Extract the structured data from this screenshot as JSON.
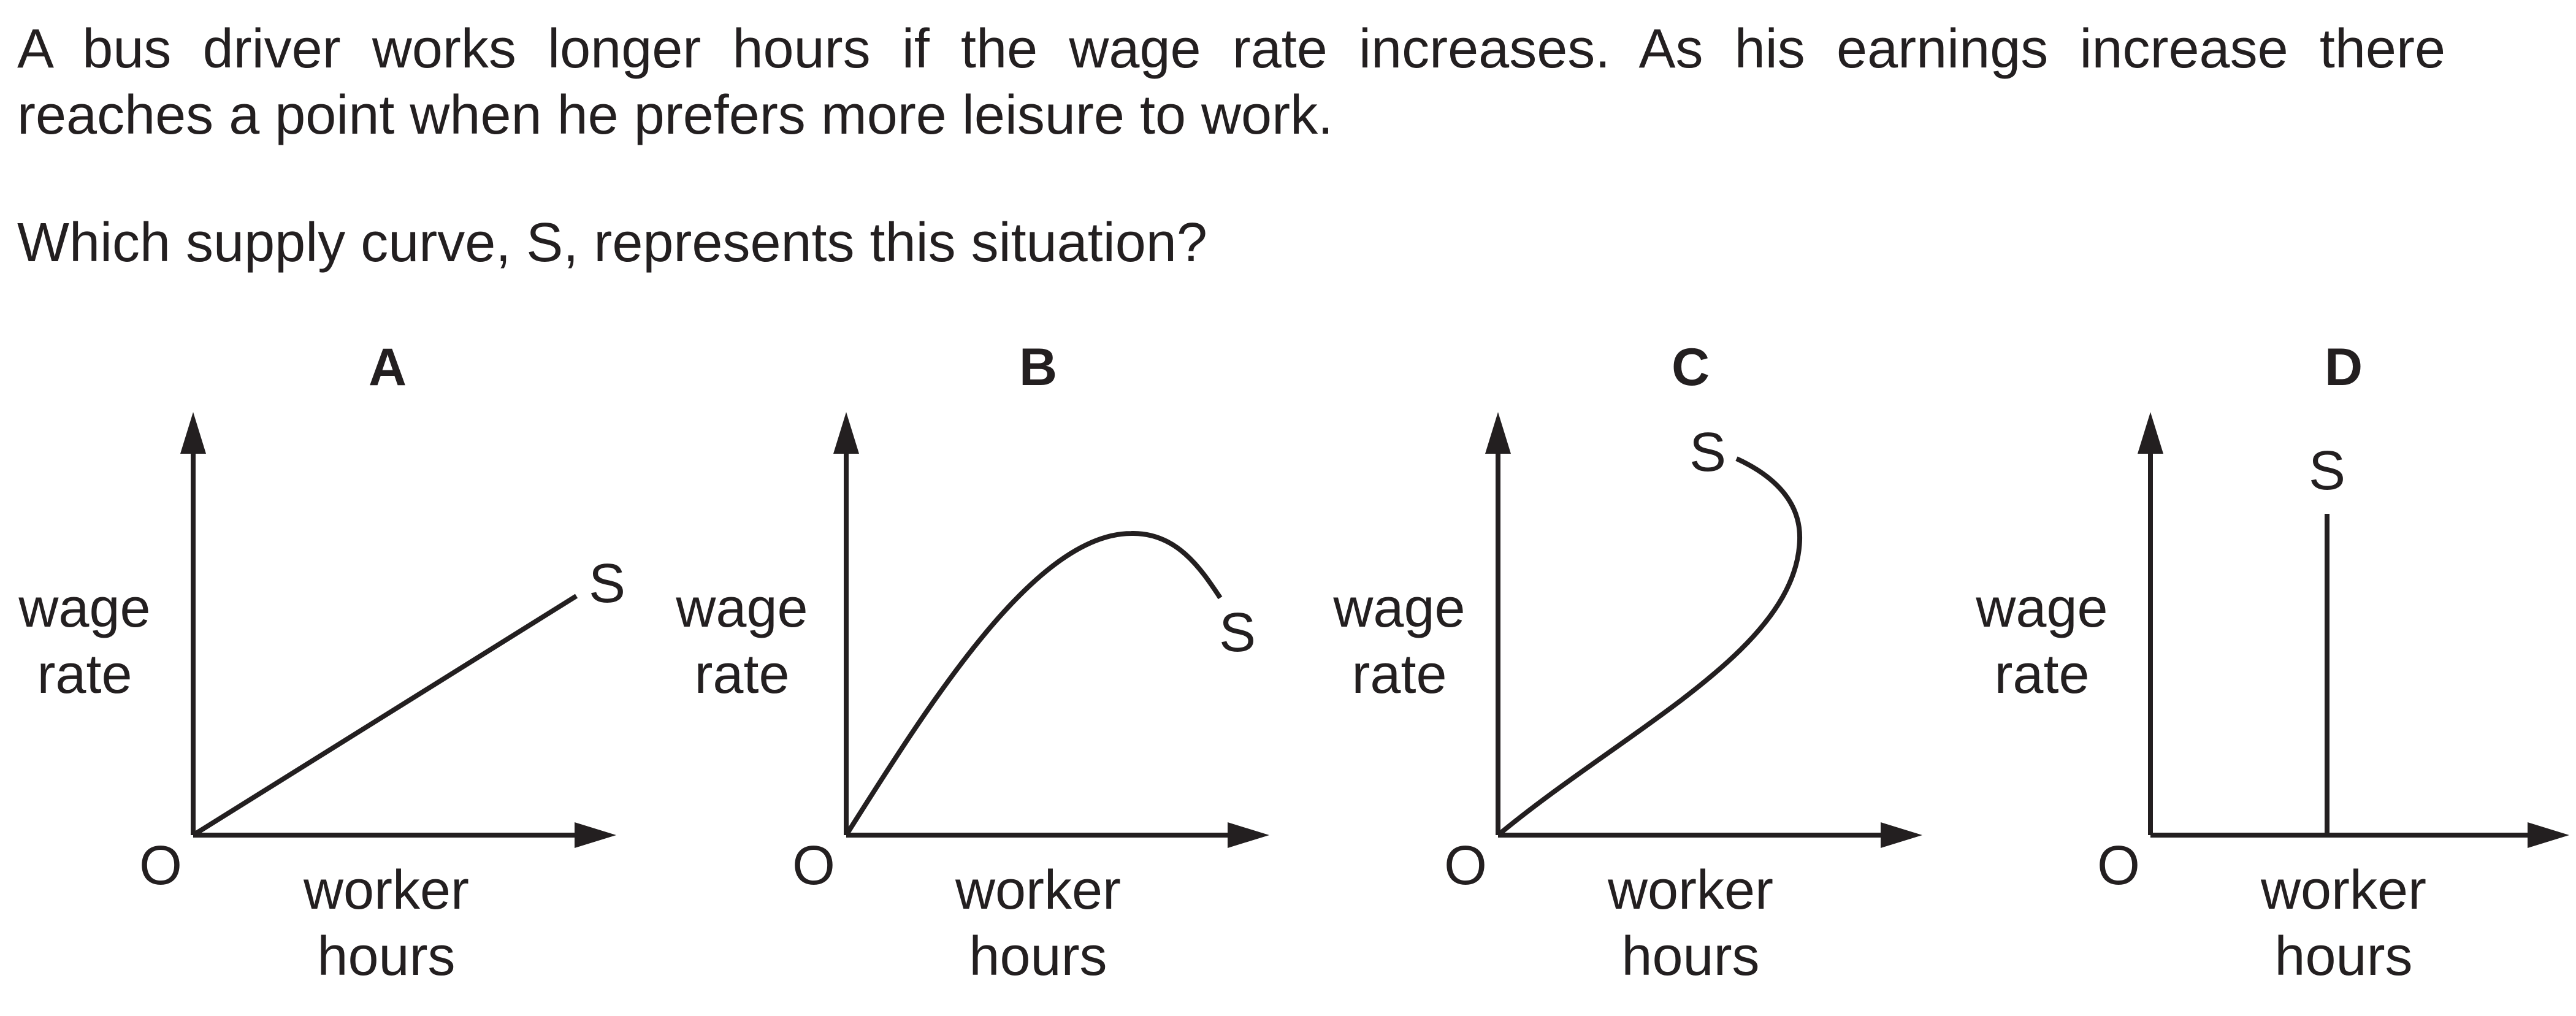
{
  "question": {
    "line1": "A bus driver works longer hours if the wage rate increases. As his earnings increase there",
    "line2": "reaches a point when he prefers more leisure to work.",
    "prompt": "Which supply curve, S, represents this situation?"
  },
  "graphs": [
    {
      "option": "A",
      "y_axis": [
        "wage",
        "rate"
      ],
      "x_axis": [
        "worker",
        "hours"
      ],
      "origin": "O",
      "curve_label": "S",
      "shape": "upward straight line"
    },
    {
      "option": "B",
      "y_axis": [
        "wage",
        "rate"
      ],
      "x_axis": [
        "worker",
        "hours"
      ],
      "origin": "O",
      "curve_label": "S",
      "shape": "rises then falls"
    },
    {
      "option": "C",
      "y_axis": [
        "wage",
        "rate"
      ],
      "x_axis": [
        "worker",
        "hours"
      ],
      "origin": "O",
      "curve_label": "S",
      "shape": "backward-bending"
    },
    {
      "option": "D",
      "y_axis": [
        "wage",
        "rate"
      ],
      "x_axis": [
        "worker",
        "hours"
      ],
      "origin": "O",
      "curve_label": "S",
      "shape": "vertical line"
    }
  ],
  "colors": {
    "ink": "#231f20",
    "background": "#ffffff"
  }
}
